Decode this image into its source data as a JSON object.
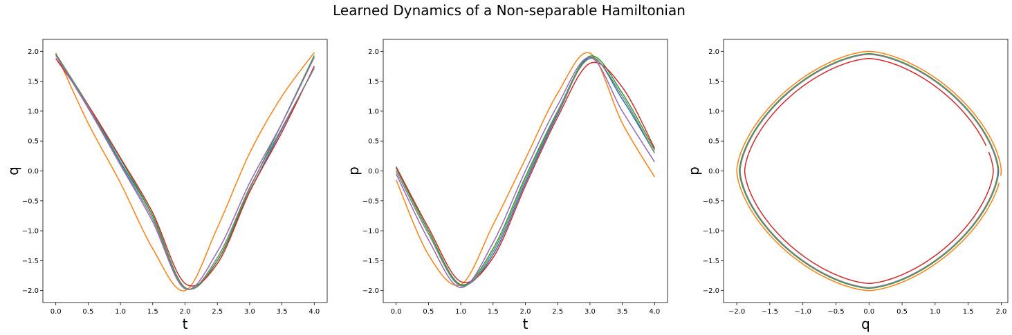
{
  "figure": {
    "title": "Learned Dynamics of a Non-separable Hamiltonian"
  },
  "chart_data": [
    {
      "type": "line",
      "xlabel": "t",
      "ylabel": "q",
      "xlim": [
        -0.2,
        4.2
      ],
      "ylim": [
        -2.2,
        2.2
      ],
      "xticks": [
        0.0,
        0.5,
        1.0,
        1.5,
        2.0,
        2.5,
        3.0,
        3.5,
        4.0
      ],
      "xtick_labels": [
        "0.0",
        "0.5",
        "1.0",
        "1.5",
        "2.0",
        "2.5",
        "3.0",
        "3.5",
        "4.0"
      ],
      "yticks": [
        -2.0,
        -1.5,
        -1.0,
        -0.5,
        0.0,
        0.5,
        1.0,
        1.5,
        2.0
      ],
      "ytick_labels": [
        "−2.0",
        "−1.5",
        "−1.0",
        "−0.5",
        "0.0",
        "0.5",
        "1.0",
        "1.5",
        "2.0"
      ],
      "x": [
        0.0,
        0.5,
        1.0,
        1.5,
        2.0,
        2.5,
        3.0,
        3.5,
        4.0
      ],
      "series": [
        {
          "color": "#1f77b4",
          "values": [
            1.95,
            1.1,
            0.15,
            -0.75,
            -1.95,
            -1.5,
            -0.35,
            0.7,
            1.72
          ]
        },
        {
          "color": "#ff7f0e",
          "values": [
            1.97,
            0.8,
            -0.2,
            -1.3,
            -2.0,
            -0.95,
            0.3,
            1.25,
            1.98
          ]
        },
        {
          "color": "#2ca02c",
          "values": [
            1.96,
            1.1,
            0.2,
            -0.75,
            -1.95,
            -1.5,
            -0.3,
            0.8,
            1.93
          ]
        },
        {
          "color": "#d62728",
          "values": [
            1.88,
            1.1,
            0.22,
            -0.7,
            -1.88,
            -1.55,
            -0.35,
            0.65,
            1.75
          ]
        },
        {
          "color": "#9467bd",
          "values": [
            1.93,
            1.05,
            0.1,
            -0.85,
            -1.97,
            -1.35,
            -0.2,
            0.8,
            1.9
          ]
        },
        {
          "color": "#7f7f7f",
          "values": [
            1.95,
            1.08,
            0.12,
            -0.8,
            -1.96,
            -1.45,
            -0.28,
            0.72,
            1.72
          ]
        }
      ]
    },
    {
      "type": "line",
      "xlabel": "t",
      "ylabel": "p",
      "xlim": [
        -0.2,
        4.2
      ],
      "ylim": [
        -2.2,
        2.2
      ],
      "xticks": [
        0.0,
        0.5,
        1.0,
        1.5,
        2.0,
        2.5,
        3.0,
        3.5,
        4.0
      ],
      "xtick_labels": [
        "0.0",
        "0.5",
        "1.0",
        "1.5",
        "2.0",
        "2.5",
        "3.0",
        "3.5",
        "4.0"
      ],
      "yticks": [
        -2.0,
        -1.5,
        -1.0,
        -0.5,
        0.0,
        0.5,
        1.0,
        1.5,
        2.0
      ],
      "ytick_labels": [
        "−2.0",
        "−1.5",
        "−1.0",
        "−0.5",
        "0.0",
        "0.5",
        "1.0",
        "1.5",
        "2.0"
      ],
      "x": [
        0.0,
        0.5,
        1.0,
        1.5,
        2.0,
        2.5,
        3.0,
        3.5,
        4.0
      ],
      "series": [
        {
          "color": "#1f77b4",
          "values": [
            0.05,
            -1.0,
            -1.9,
            -1.4,
            -0.2,
            0.95,
            1.9,
            1.2,
            0.3
          ]
        },
        {
          "color": "#ff7f0e",
          "values": [
            -0.15,
            -1.4,
            -1.9,
            -0.9,
            0.2,
            1.3,
            1.97,
            0.8,
            -0.1
          ]
        },
        {
          "color": "#2ca02c",
          "values": [
            0.05,
            -1.0,
            -1.9,
            -1.3,
            -0.1,
            1.0,
            1.92,
            1.3,
            0.35
          ]
        },
        {
          "color": "#d62728",
          "values": [
            0.07,
            -0.95,
            -1.85,
            -1.45,
            -0.25,
            0.9,
            1.8,
            1.4,
            0.38
          ]
        },
        {
          "color": "#9467bd",
          "values": [
            -0.05,
            -1.15,
            -1.95,
            -1.2,
            0.0,
            1.1,
            1.9,
            1.0,
            0.15
          ]
        },
        {
          "color": "#7f7f7f",
          "values": [
            0.0,
            -1.05,
            -1.92,
            -1.35,
            -0.15,
            0.98,
            1.88,
            1.25,
            0.3
          ]
        }
      ]
    },
    {
      "type": "line",
      "subtype": "phase-portrait",
      "xlabel": "q",
      "ylabel": "p",
      "xlim": [
        -2.2,
        2.1
      ],
      "ylim": [
        -2.2,
        2.2
      ],
      "xticks": [
        -2.0,
        -1.5,
        -1.0,
        -0.5,
        0.0,
        0.5,
        1.0,
        1.5,
        2.0
      ],
      "xtick_labels": [
        "−2.0",
        "−1.5",
        "−1.0",
        "−0.5",
        "0.0",
        "0.5",
        "1.0",
        "1.5",
        "2.0"
      ],
      "yticks": [
        -2.0,
        -1.5,
        -1.0,
        -0.5,
        0.0,
        0.5,
        1.0,
        1.5,
        2.0
      ],
      "ytick_labels": [
        "−2.0",
        "−1.5",
        "−1.0",
        "−0.5",
        "0.0",
        "0.5",
        "1.0",
        "1.5",
        "2.0"
      ],
      "series": [
        {
          "color": "#ff7f0e",
          "amplitude": 2.0,
          "end_point": [
            1.98,
            -0.12
          ]
        },
        {
          "color": "#1f77b4",
          "amplitude": 1.96,
          "end_point": [
            1.72,
            0.34
          ]
        },
        {
          "color": "#2ca02c",
          "amplitude": 1.96,
          "end_point": [
            1.94,
            -0.02
          ]
        },
        {
          "color": "#9467bd",
          "amplitude": 1.95,
          "end_point": [
            1.9,
            0.1
          ]
        },
        {
          "color": "#7f7f7f",
          "amplitude": 1.95,
          "end_point": [
            1.75,
            0.3
          ]
        },
        {
          "color": "#d62728",
          "amplitude": 1.88,
          "end_point": [
            1.75,
            0.38
          ]
        }
      ]
    }
  ]
}
